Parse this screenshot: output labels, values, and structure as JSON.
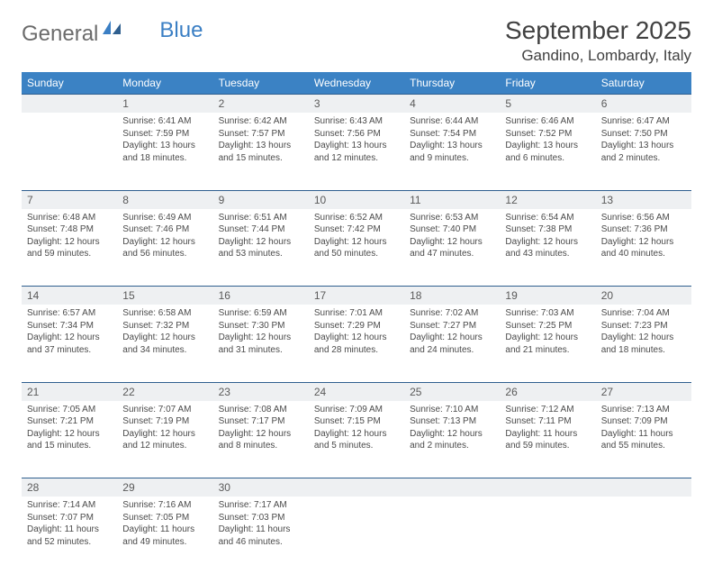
{
  "logo": {
    "text1": "General",
    "text2": "Blue"
  },
  "title": "September 2025",
  "location": "Gandino, Lombardy, Italy",
  "colors": {
    "header_bg": "#3b82c4",
    "header_text": "#ffffff",
    "daynum_bg": "#eef0f2",
    "row_border": "#2f5f8f",
    "text": "#4a4a4a",
    "logo_gray": "#6b6b6b",
    "logo_blue": "#3b7fc4"
  },
  "weekdays": [
    "Sunday",
    "Monday",
    "Tuesday",
    "Wednesday",
    "Thursday",
    "Friday",
    "Saturday"
  ],
  "weeks": [
    {
      "nums": [
        "",
        "1",
        "2",
        "3",
        "4",
        "5",
        "6"
      ],
      "cells": [
        {
          "sunrise": "",
          "sunset": "",
          "daylight": ""
        },
        {
          "sunrise": "Sunrise: 6:41 AM",
          "sunset": "Sunset: 7:59 PM",
          "daylight": "Daylight: 13 hours and 18 minutes."
        },
        {
          "sunrise": "Sunrise: 6:42 AM",
          "sunset": "Sunset: 7:57 PM",
          "daylight": "Daylight: 13 hours and 15 minutes."
        },
        {
          "sunrise": "Sunrise: 6:43 AM",
          "sunset": "Sunset: 7:56 PM",
          "daylight": "Daylight: 13 hours and 12 minutes."
        },
        {
          "sunrise": "Sunrise: 6:44 AM",
          "sunset": "Sunset: 7:54 PM",
          "daylight": "Daylight: 13 hours and 9 minutes."
        },
        {
          "sunrise": "Sunrise: 6:46 AM",
          "sunset": "Sunset: 7:52 PM",
          "daylight": "Daylight: 13 hours and 6 minutes."
        },
        {
          "sunrise": "Sunrise: 6:47 AM",
          "sunset": "Sunset: 7:50 PM",
          "daylight": "Daylight: 13 hours and 2 minutes."
        }
      ]
    },
    {
      "nums": [
        "7",
        "8",
        "9",
        "10",
        "11",
        "12",
        "13"
      ],
      "cells": [
        {
          "sunrise": "Sunrise: 6:48 AM",
          "sunset": "Sunset: 7:48 PM",
          "daylight": "Daylight: 12 hours and 59 minutes."
        },
        {
          "sunrise": "Sunrise: 6:49 AM",
          "sunset": "Sunset: 7:46 PM",
          "daylight": "Daylight: 12 hours and 56 minutes."
        },
        {
          "sunrise": "Sunrise: 6:51 AM",
          "sunset": "Sunset: 7:44 PM",
          "daylight": "Daylight: 12 hours and 53 minutes."
        },
        {
          "sunrise": "Sunrise: 6:52 AM",
          "sunset": "Sunset: 7:42 PM",
          "daylight": "Daylight: 12 hours and 50 minutes."
        },
        {
          "sunrise": "Sunrise: 6:53 AM",
          "sunset": "Sunset: 7:40 PM",
          "daylight": "Daylight: 12 hours and 47 minutes."
        },
        {
          "sunrise": "Sunrise: 6:54 AM",
          "sunset": "Sunset: 7:38 PM",
          "daylight": "Daylight: 12 hours and 43 minutes."
        },
        {
          "sunrise": "Sunrise: 6:56 AM",
          "sunset": "Sunset: 7:36 PM",
          "daylight": "Daylight: 12 hours and 40 minutes."
        }
      ]
    },
    {
      "nums": [
        "14",
        "15",
        "16",
        "17",
        "18",
        "19",
        "20"
      ],
      "cells": [
        {
          "sunrise": "Sunrise: 6:57 AM",
          "sunset": "Sunset: 7:34 PM",
          "daylight": "Daylight: 12 hours and 37 minutes."
        },
        {
          "sunrise": "Sunrise: 6:58 AM",
          "sunset": "Sunset: 7:32 PM",
          "daylight": "Daylight: 12 hours and 34 minutes."
        },
        {
          "sunrise": "Sunrise: 6:59 AM",
          "sunset": "Sunset: 7:30 PM",
          "daylight": "Daylight: 12 hours and 31 minutes."
        },
        {
          "sunrise": "Sunrise: 7:01 AM",
          "sunset": "Sunset: 7:29 PM",
          "daylight": "Daylight: 12 hours and 28 minutes."
        },
        {
          "sunrise": "Sunrise: 7:02 AM",
          "sunset": "Sunset: 7:27 PM",
          "daylight": "Daylight: 12 hours and 24 minutes."
        },
        {
          "sunrise": "Sunrise: 7:03 AM",
          "sunset": "Sunset: 7:25 PM",
          "daylight": "Daylight: 12 hours and 21 minutes."
        },
        {
          "sunrise": "Sunrise: 7:04 AM",
          "sunset": "Sunset: 7:23 PM",
          "daylight": "Daylight: 12 hours and 18 minutes."
        }
      ]
    },
    {
      "nums": [
        "21",
        "22",
        "23",
        "24",
        "25",
        "26",
        "27"
      ],
      "cells": [
        {
          "sunrise": "Sunrise: 7:05 AM",
          "sunset": "Sunset: 7:21 PM",
          "daylight": "Daylight: 12 hours and 15 minutes."
        },
        {
          "sunrise": "Sunrise: 7:07 AM",
          "sunset": "Sunset: 7:19 PM",
          "daylight": "Daylight: 12 hours and 12 minutes."
        },
        {
          "sunrise": "Sunrise: 7:08 AM",
          "sunset": "Sunset: 7:17 PM",
          "daylight": "Daylight: 12 hours and 8 minutes."
        },
        {
          "sunrise": "Sunrise: 7:09 AM",
          "sunset": "Sunset: 7:15 PM",
          "daylight": "Daylight: 12 hours and 5 minutes."
        },
        {
          "sunrise": "Sunrise: 7:10 AM",
          "sunset": "Sunset: 7:13 PM",
          "daylight": "Daylight: 12 hours and 2 minutes."
        },
        {
          "sunrise": "Sunrise: 7:12 AM",
          "sunset": "Sunset: 7:11 PM",
          "daylight": "Daylight: 11 hours and 59 minutes."
        },
        {
          "sunrise": "Sunrise: 7:13 AM",
          "sunset": "Sunset: 7:09 PM",
          "daylight": "Daylight: 11 hours and 55 minutes."
        }
      ]
    },
    {
      "nums": [
        "28",
        "29",
        "30",
        "",
        "",
        "",
        ""
      ],
      "cells": [
        {
          "sunrise": "Sunrise: 7:14 AM",
          "sunset": "Sunset: 7:07 PM",
          "daylight": "Daylight: 11 hours and 52 minutes."
        },
        {
          "sunrise": "Sunrise: 7:16 AM",
          "sunset": "Sunset: 7:05 PM",
          "daylight": "Daylight: 11 hours and 49 minutes."
        },
        {
          "sunrise": "Sunrise: 7:17 AM",
          "sunset": "Sunset: 7:03 PM",
          "daylight": "Daylight: 11 hours and 46 minutes."
        },
        {
          "sunrise": "",
          "sunset": "",
          "daylight": ""
        },
        {
          "sunrise": "",
          "sunset": "",
          "daylight": ""
        },
        {
          "sunrise": "",
          "sunset": "",
          "daylight": ""
        },
        {
          "sunrise": "",
          "sunset": "",
          "daylight": ""
        }
      ]
    }
  ]
}
